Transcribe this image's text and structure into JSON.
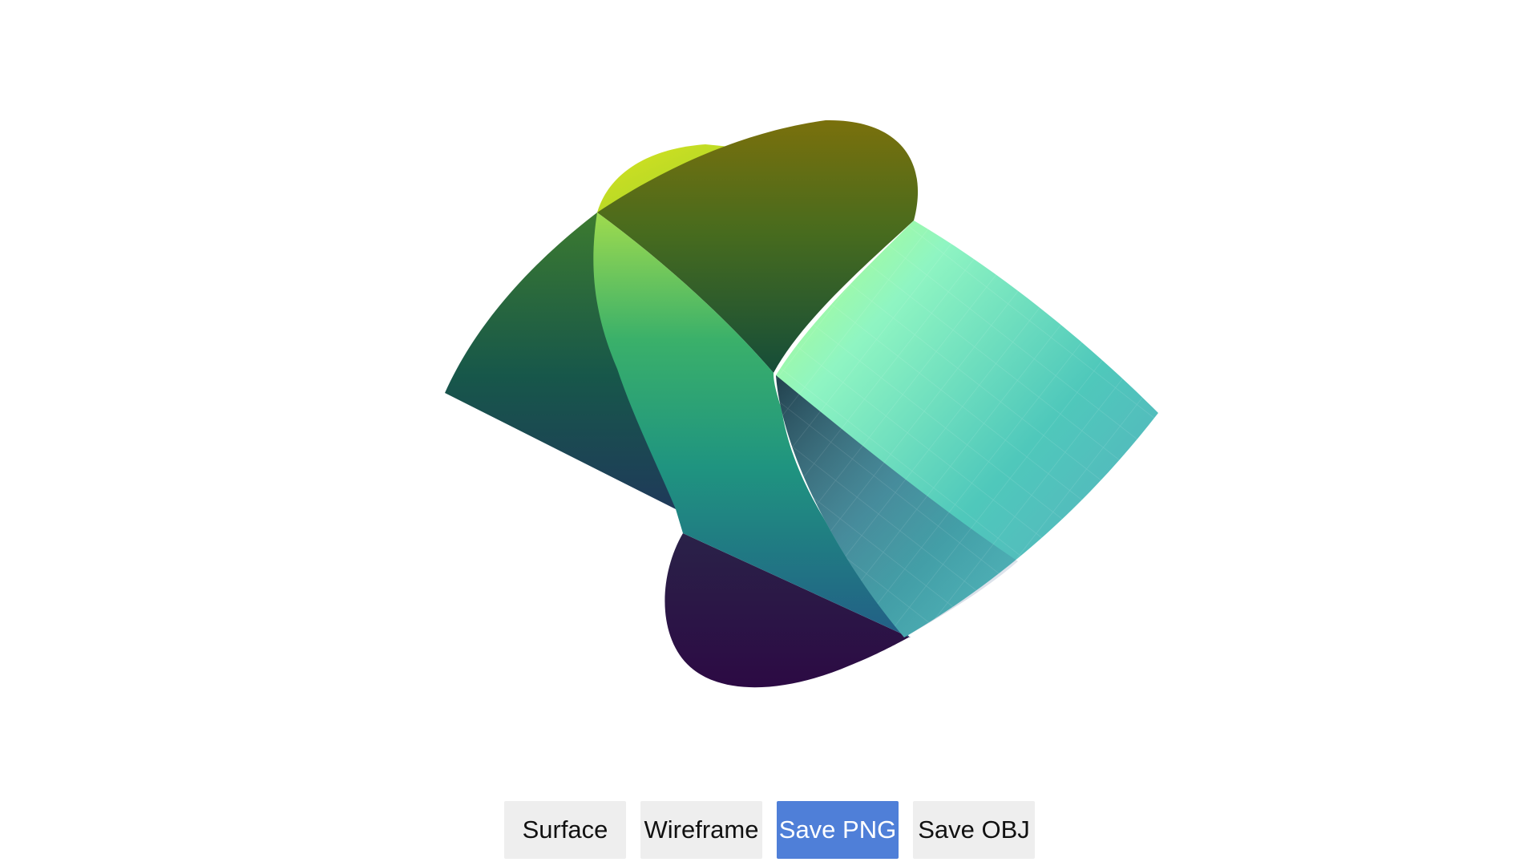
{
  "viewer": {
    "surface_colormap": "viridis",
    "colors": {
      "background": "#ffffff",
      "button_bg": "#eeeeee",
      "button_active_bg": "#4f7fd8",
      "button_text": "#111111",
      "button_active_text": "#ffffff"
    }
  },
  "toolbar": {
    "surface_label": "Surface",
    "wireframe_label": "Wireframe",
    "save_png_label": "Save PNG",
    "save_obj_label": "Save OBJ"
  }
}
